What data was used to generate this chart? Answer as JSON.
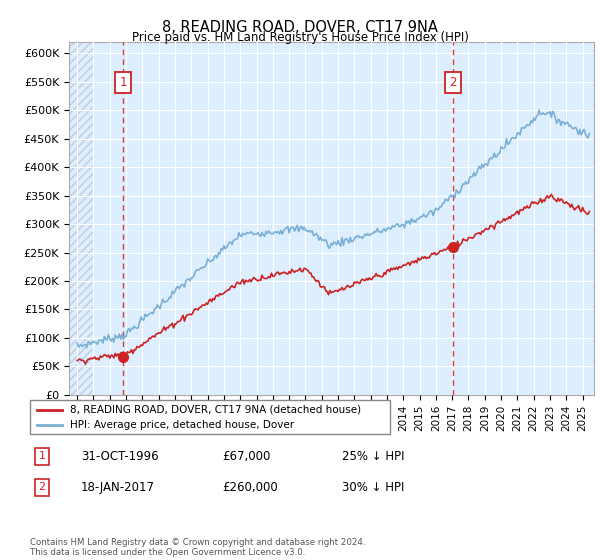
{
  "title": "8, READING ROAD, DOVER, CT17 9NA",
  "subtitle": "Price paid vs. HM Land Registry's House Price Index (HPI)",
  "legend_line1": "8, READING ROAD, DOVER, CT17 9NA (detached house)",
  "legend_line2": "HPI: Average price, detached house, Dover",
  "annotation1_date": "31-OCT-1996",
  "annotation1_price": "£67,000",
  "annotation1_note": "25% ↓ HPI",
  "annotation2_date": "18-JAN-2017",
  "annotation2_price": "£260,000",
  "annotation2_note": "30% ↓ HPI",
  "footer": "Contains HM Land Registry data © Crown copyright and database right 2024.\nThis data is licensed under the Open Government Licence v3.0.",
  "sale1_x": 1996.83,
  "sale1_y": 67000,
  "sale2_x": 2017.05,
  "sale2_y": 260000,
  "hpi_color": "#7ab0d4",
  "price_color": "#cc2222",
  "vline_color": "#cc2222",
  "dot_color": "#cc2222",
  "ylim_min": 0,
  "ylim_max": 620000,
  "yticks": [
    0,
    50000,
    100000,
    150000,
    200000,
    250000,
    300000,
    350000,
    400000,
    450000,
    500000,
    550000,
    600000
  ],
  "xlim_min": 1993.5,
  "xlim_max": 2025.7,
  "plot_bg_color": "#ddeeff",
  "hatch_color": "#c0cce0"
}
